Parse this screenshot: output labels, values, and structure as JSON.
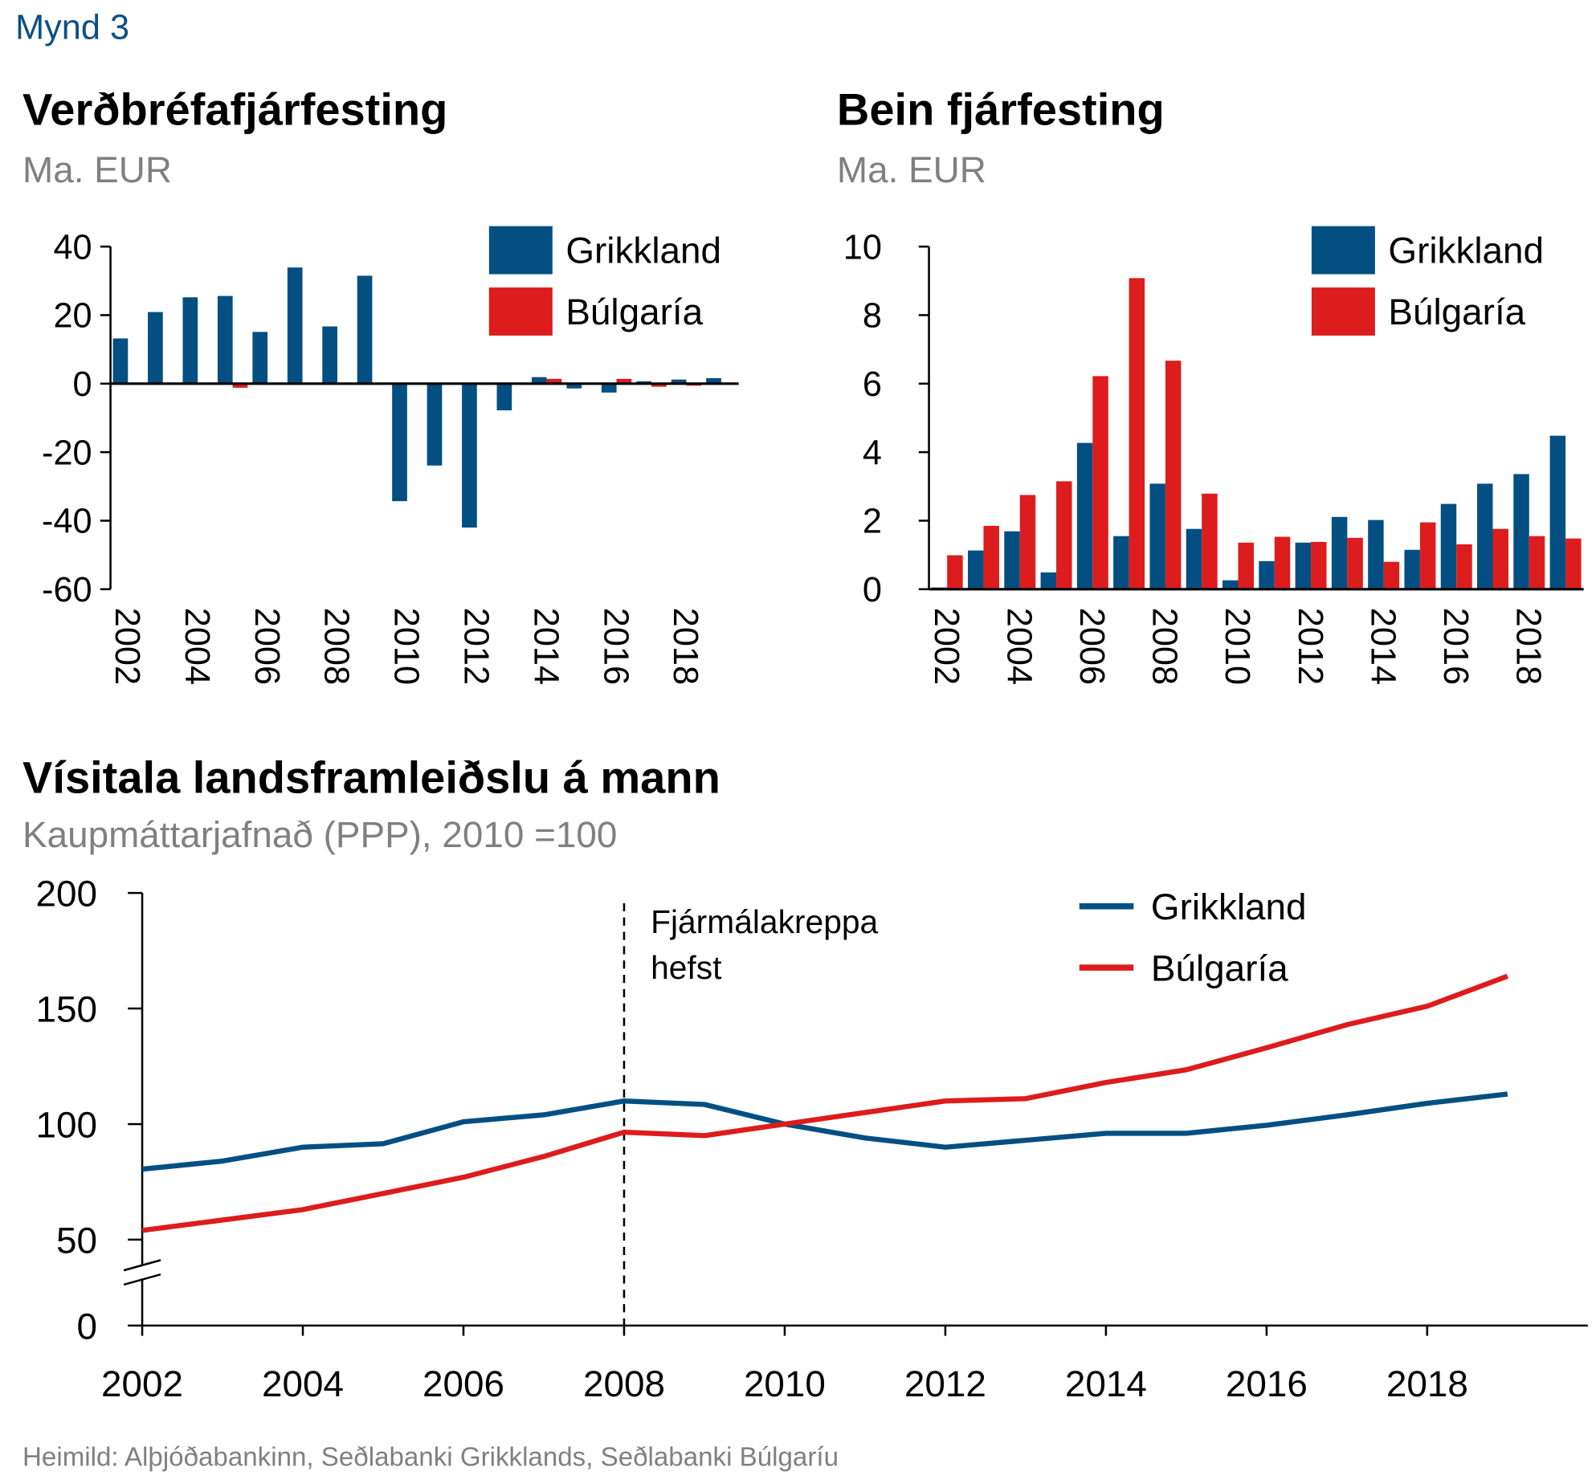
{
  "figure_label": "Mynd 3",
  "source": "Heimild: Alþjóðabankinn, Seðlabanki Grikklands, Seðlabanki Búlgaríu",
  "colors": {
    "greece": "#034f82",
    "bulgaria": "#dd1c1d",
    "label": "#0d4f85",
    "subtitle": "#808080"
  },
  "chart_data": [
    {
      "type": "bar",
      "title": "Verðbréfafjárfesting",
      "subtitle": "Ma. EUR",
      "categories": [
        2002,
        2003,
        2004,
        2005,
        2006,
        2007,
        2008,
        2009,
        2010,
        2011,
        2012,
        2013,
        2014,
        2015,
        2016,
        2017,
        2018,
        2019
      ],
      "x_tick_labels": [
        "2002",
        "2004",
        "2006",
        "2008",
        "2010",
        "2012",
        "2014",
        "2016",
        "2018"
      ],
      "ylim": [
        -60,
        40
      ],
      "y_ticks": [
        "40",
        "20",
        "0",
        "-20",
        "-40",
        "-60"
      ],
      "legend_position": "top-right",
      "series": [
        {
          "name": "Grikkland",
          "values": [
            13.2,
            20.9,
            25.2,
            25.6,
            15.1,
            33.9,
            16.7,
            31.5,
            -34.3,
            -23.9,
            -42.0,
            -7.8,
            1.9,
            -1.4,
            -2.6,
            0.7,
            1.2,
            1.6
          ]
        },
        {
          "name": "Búlgaría",
          "values": [
            0,
            0,
            0,
            -1.2,
            0.3,
            0,
            0,
            0,
            0,
            0,
            0.3,
            0.3,
            1.4,
            0,
            1.4,
            -0.9,
            -0.6,
            0
          ]
        }
      ]
    },
    {
      "type": "bar",
      "title": "Bein fjárfesting",
      "subtitle": "Ma. EUR",
      "categories": [
        2002,
        2003,
        2004,
        2005,
        2006,
        2007,
        2008,
        2009,
        2010,
        2011,
        2012,
        2013,
        2014,
        2015,
        2016,
        2017,
        2018,
        2019
      ],
      "x_tick_labels": [
        "2002",
        "2004",
        "2006",
        "2008",
        "2010",
        "2012",
        "2014",
        "2016",
        "2018"
      ],
      "ylim": [
        0,
        10
      ],
      "y_ticks": [
        "10",
        "8",
        "6",
        "4",
        "2",
        "0"
      ],
      "legend_position": "top-right",
      "series": [
        {
          "name": "Grikkland",
          "values": [
            0.05,
            1.13,
            1.69,
            0.49,
            4.27,
            1.55,
            3.08,
            1.76,
            0.26,
            0.82,
            1.36,
            2.11,
            2.02,
            1.15,
            2.49,
            3.08,
            3.36,
            4.48
          ]
        },
        {
          "name": "Búlgaría",
          "values": [
            0.99,
            1.85,
            2.75,
            3.15,
            6.22,
            9.08,
            6.67,
            2.79,
            1.36,
            1.53,
            1.38,
            1.5,
            0.8,
            1.95,
            1.31,
            1.76,
            1.55,
            1.48
          ]
        }
      ]
    },
    {
      "type": "line",
      "title": "Vísitala landsframleiðslu á mann",
      "subtitle": "Kaupmáttarjafnað (PPP), 2010 =100",
      "x": [
        2002,
        2003,
        2004,
        2005,
        2006,
        2007,
        2008,
        2009,
        2010,
        2011,
        2012,
        2013,
        2014,
        2015,
        2016,
        2017,
        2018,
        2019
      ],
      "x_tick_labels": [
        "2002",
        "2004",
        "2006",
        "2008",
        "2010",
        "2012",
        "2014",
        "2016",
        "2018"
      ],
      "ylim": [
        0,
        200
      ],
      "y_axis_break": true,
      "y_ticks": [
        "200",
        "150",
        "100",
        "50",
        "0"
      ],
      "legend_position": "top-right",
      "annotation": {
        "x": 2008,
        "lines": [
          "Fjármálakreppa",
          "hefst"
        ],
        "style": "dashed-vertical"
      },
      "series": [
        {
          "name": "Grikkland",
          "values": [
            80.5,
            84,
            90,
            91.5,
            101,
            104,
            110,
            108.5,
            100,
            94,
            90,
            93,
            96,
            96,
            99.5,
            104,
            109,
            113
          ]
        },
        {
          "name": "Búlgaría",
          "values": [
            54,
            58.5,
            63,
            70,
            77,
            86,
            96.5,
            95,
            100,
            105,
            110,
            111,
            118,
            123.5,
            133,
            143,
            151,
            164
          ]
        }
      ]
    }
  ]
}
